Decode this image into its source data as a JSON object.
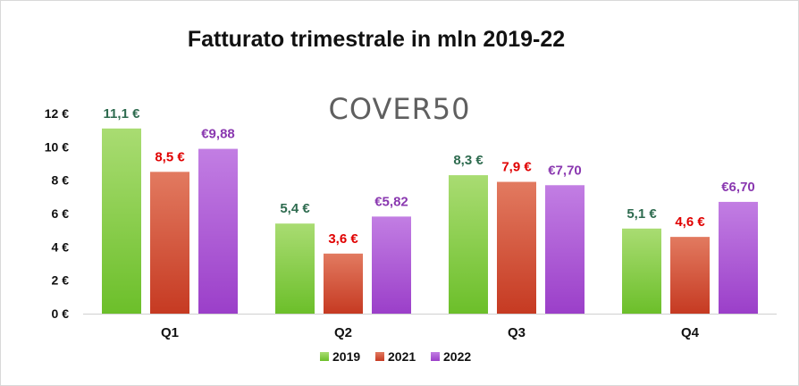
{
  "chart_data": {
    "type": "bar",
    "title": "Fatturato trimestrale in mln 2019-22",
    "watermark": "COVER50",
    "categories": [
      "Q1",
      "Q2",
      "Q3",
      "Q4"
    ],
    "ylim": [
      0,
      12
    ],
    "yticks": [
      {
        "value": 0,
        "label": "0 €"
      },
      {
        "value": 2,
        "label": "2 €"
      },
      {
        "value": 4,
        "label": "4 €"
      },
      {
        "value": 6,
        "label": "6 €"
      },
      {
        "value": 8,
        "label": "8 €"
      },
      {
        "value": 10,
        "label": "10 €"
      },
      {
        "value": 12,
        "label": "12 €"
      }
    ],
    "grid": false,
    "legend_position": "bottom",
    "series": [
      {
        "name": "2019",
        "values": [
          11.1,
          5.4,
          8.3,
          5.1
        ],
        "labels": [
          "11,1 €",
          "5,4 €",
          "8,3 €",
          "5,1 €"
        ],
        "color_top": "#a9dc72",
        "color_bottom": "#6cbf2a",
        "label_color": "#2e6b4f"
      },
      {
        "name": "2021",
        "values": [
          8.5,
          3.6,
          7.9,
          4.6
        ],
        "labels": [
          "8,5 €",
          "3,6 €",
          "7,9 €",
          "4,6 €"
        ],
        "color_top": "#e27a60",
        "color_bottom": "#c63a22",
        "label_color": "#e00000"
      },
      {
        "name": "2022",
        "values": [
          9.88,
          5.82,
          7.7,
          6.7
        ],
        "labels": [
          "€9,88",
          "€5,82",
          "€7,70",
          "€6,70"
        ],
        "color_top": "#c27ee3",
        "color_bottom": "#9b3fc9",
        "label_color": "#8a38b0"
      }
    ]
  }
}
